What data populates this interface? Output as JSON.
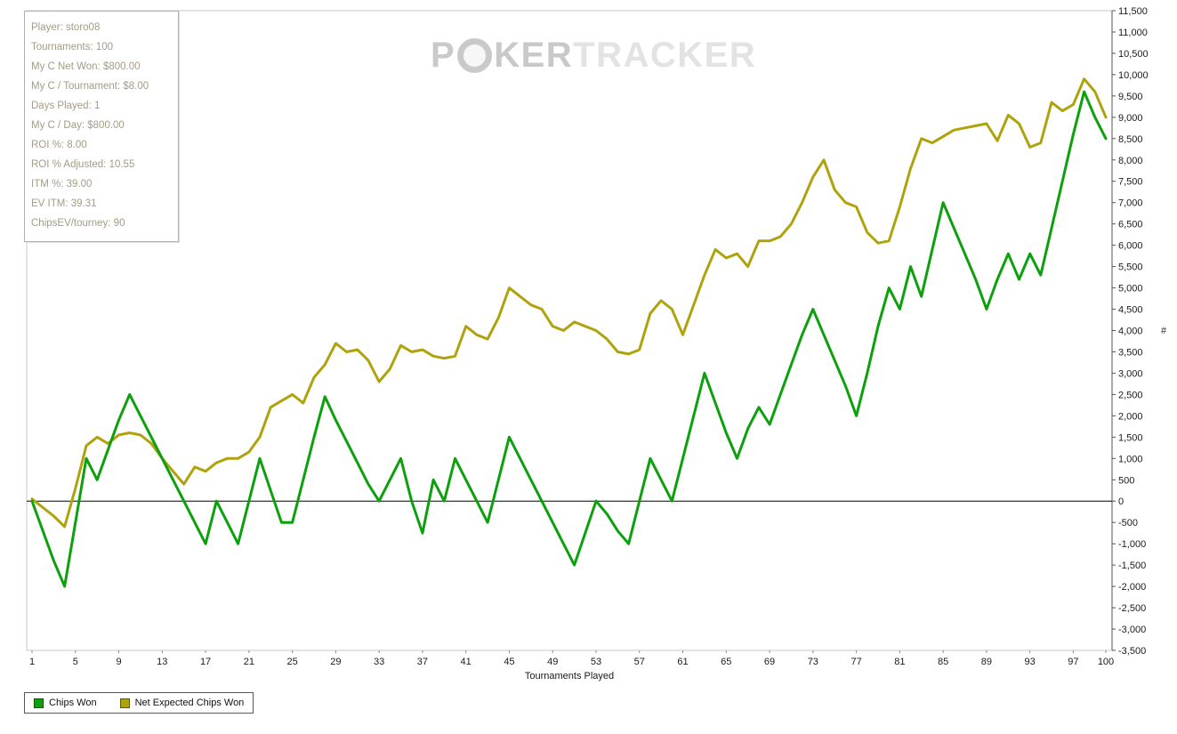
{
  "info_box": {
    "lines": [
      "Player: storo08",
      "Tournaments: 100",
      "My C Net Won: $800.00",
      "My C / Tournament: $8.00",
      "Days Played: 1",
      "My C / Day: $800.00",
      "ROI %: 8.00",
      "ROI % Adjusted: 10.55",
      "ITM %: 39.00",
      "EV ITM: 39.31",
      "ChipsEV/tourney: 90"
    ]
  },
  "watermark": {
    "part_p": "P",
    "part_ker": "KER",
    "part_tracker": "TRACKER"
  },
  "legend": [
    {
      "label": "Chips Won",
      "color": "#0CA00C"
    },
    {
      "label": "Net Expected Chips Won",
      "color": "#AFA30D"
    }
  ],
  "chart_data": {
    "type": "line",
    "title": "",
    "xlabel": "Tournaments Played",
    "ylabel": "#",
    "ylim": [
      -3500,
      11500
    ],
    "y_tick_step": 500,
    "x_ticks": [
      1,
      5,
      9,
      13,
      17,
      21,
      25,
      29,
      33,
      37,
      41,
      45,
      49,
      53,
      57,
      61,
      65,
      69,
      73,
      77,
      81,
      85,
      89,
      93,
      97,
      100
    ],
    "series": [
      {
        "name": "Chips Won",
        "color": "#0CA00C",
        "values": [
          0,
          -700,
          -1400,
          -2000,
          -500,
          1000,
          500,
          1200,
          1900,
          2500,
          2000,
          1500,
          1000,
          500,
          0,
          -500,
          -1000,
          0,
          -500,
          -1000,
          0,
          1000,
          250,
          -500,
          -500,
          500,
          1500,
          2450,
          1900,
          1400,
          900,
          400,
          0,
          500,
          1000,
          0,
          -750,
          500,
          0,
          1000,
          500,
          0,
          -500,
          500,
          1500,
          1000,
          500,
          0,
          -500,
          -1000,
          -1500,
          -750,
          0,
          -300,
          -700,
          -1000,
          0,
          1000,
          500,
          0,
          1000,
          2000,
          3000,
          2300,
          1600,
          1000,
          1700,
          2200,
          1800,
          2500,
          3200,
          3900,
          4500,
          3900,
          3300,
          2700,
          2000,
          3000,
          4100,
          5000,
          4500,
          5500,
          4800,
          5900,
          7000,
          6400,
          5800,
          5200,
          4500,
          5200,
          5800,
          5200,
          5800,
          5300,
          6400,
          7500,
          8600,
          9600,
          9000,
          8500
        ]
      },
      {
        "name": "Net Expected Chips Won",
        "color": "#AFA30D",
        "values": [
          50,
          -150,
          -350,
          -600,
          300,
          1300,
          1500,
          1350,
          1550,
          1600,
          1550,
          1350,
          1000,
          700,
          400,
          800,
          700,
          900,
          1000,
          1000,
          1150,
          1500,
          2200,
          2350,
          2500,
          2300,
          2900,
          3200,
          3700,
          3500,
          3550,
          3300,
          2800,
          3100,
          3650,
          3500,
          3550,
          3400,
          3350,
          3400,
          4100,
          3900,
          3800,
          4300,
          5000,
          4800,
          4600,
          4500,
          4100,
          4000,
          4200,
          4100,
          4000,
          3800,
          3500,
          3450,
          3550,
          4400,
          4700,
          4500,
          3900,
          4600,
          5300,
          5900,
          5700,
          5800,
          5500,
          6100,
          6100,
          6200,
          6500,
          7000,
          7600,
          8000,
          7300,
          7000,
          6900,
          6300,
          6050,
          6100,
          6900,
          7800,
          8500,
          8400,
          8550,
          8700,
          8750,
          8800,
          8850,
          8450,
          9050,
          8850,
          8300,
          8400,
          9350,
          9150,
          9300,
          9900,
          9600,
          9000
        ]
      }
    ]
  }
}
